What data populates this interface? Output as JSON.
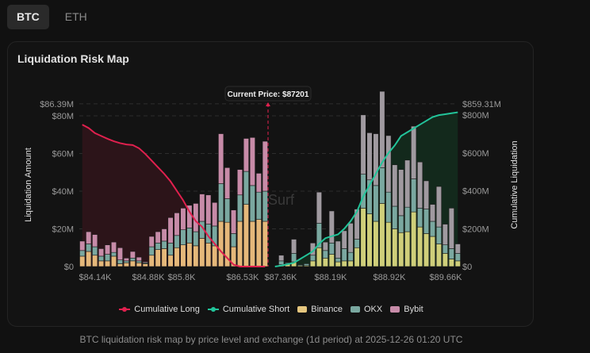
{
  "tabs": [
    {
      "label": "BTC",
      "active": true
    },
    {
      "label": "ETH",
      "active": false
    }
  ],
  "card": {
    "title": "Liquidation Risk Map"
  },
  "caption": "BTC liquidation risk map by price level and exchange (1d period) at 2025-12-26 01:20 UTC",
  "colors": {
    "binance": "#e5b87a",
    "binance_short": "#cfcf7a",
    "okx": "#7aa8a0",
    "bybit": "#c78ba8",
    "bybit_short": "#a09aa0",
    "long_line": "#e0204e",
    "short_line": "#22c49a",
    "long_fill": "#2c1419",
    "short_fill": "#13291c"
  },
  "chart_data": {
    "type": "bar",
    "title": "Liquidation Risk Map",
    "xlabel": "",
    "ylabel": "Liquidation Amount",
    "y2label": "Cumulative Liquidation",
    "ylim": [
      0,
      86.39
    ],
    "y2lim": [
      0,
      859.31
    ],
    "y_ticks": [
      "$0",
      "$20M",
      "$40M",
      "$60M",
      "$80M",
      "$86.39M"
    ],
    "y_tick_values": [
      0,
      20,
      40,
      60,
      80,
      86.39
    ],
    "y2_ticks": [
      "$0",
      "$200M",
      "$400M",
      "$600M",
      "$800M",
      "$859.31M"
    ],
    "y2_tick_values": [
      0,
      200,
      400,
      600,
      800,
      859.31
    ],
    "x_ticks": [
      "$84.14K",
      "$84.88K",
      "$85.8K",
      "$86.53K",
      "$87.36K",
      "$88.19K",
      "$88.92K",
      "$89.66K"
    ],
    "current_price_label": "Current Price: $87201",
    "current_price": 87201,
    "watermark": "Surf",
    "grid": true,
    "legend_position": "bottom",
    "legend": [
      "Cumulative Long",
      "Cumulative Short",
      "Binance",
      "OKX",
      "Bybit"
    ],
    "long_bars": {
      "binance": [
        5.5,
        8,
        6,
        3,
        3,
        5.5,
        1.5,
        2,
        3,
        2,
        1.5,
        6,
        9,
        9.5,
        6,
        10,
        11.5,
        12.5,
        11,
        15,
        12.5,
        11,
        24,
        23.5,
        10.5,
        24,
        33,
        24,
        25,
        24
      ],
      "okx": [
        3,
        4,
        4.5,
        2.5,
        3.5,
        2,
        2,
        1,
        1.5,
        1,
        0.5,
        4.5,
        3.5,
        4,
        6.5,
        6.5,
        8,
        8,
        7.5,
        9,
        10,
        10.5,
        20,
        12.5,
        7,
        14,
        17.5,
        19,
        14.5,
        16
      ],
      "bybit": [
        5,
        6.5,
        6.5,
        4,
        5,
        5.5,
        6.5,
        1.5,
        3.5,
        2,
        0.5,
        5.5,
        6,
        6.5,
        13.5,
        12,
        11.5,
        12,
        15,
        14.5,
        15.5,
        12.5,
        26.5,
        16.5,
        12.5,
        13.5,
        17.5,
        25.5,
        10,
        26.5
      ],
      "cumulative": [
        750,
        732,
        705,
        690,
        675,
        662,
        652,
        645,
        642,
        625,
        595,
        560,
        525,
        490,
        450,
        400,
        350,
        290,
        240,
        210,
        160,
        120,
        80,
        45,
        10,
        0,
        0,
        0,
        0,
        0
      ]
    },
    "short_bars": {
      "binance": [
        0,
        1,
        1.5,
        2.5,
        0.5,
        0.5,
        3,
        10,
        4.5,
        6.5,
        2.5,
        3,
        3,
        10,
        31,
        28,
        24,
        33.5,
        23.5,
        20,
        18,
        18.5,
        29,
        21,
        17.5,
        16,
        12,
        7,
        4,
        3
      ],
      "okx": [
        0,
        2,
        0.5,
        4.5,
        0.5,
        1,
        3,
        13,
        4,
        6,
        2,
        6.5,
        4.5,
        4.5,
        18,
        18,
        19,
        19,
        16,
        12,
        9,
        13,
        17.5,
        10,
        13,
        8,
        9,
        4.5,
        5.5,
        4
      ],
      "bybit": [
        0,
        3,
        0,
        7.5,
        0,
        0,
        6.5,
        16.5,
        4.5,
        17,
        9,
        9.5,
        15.5,
        16,
        31.5,
        25,
        27.5,
        40.5,
        30,
        22,
        24.5,
        25,
        28,
        24.5,
        15,
        9,
        21.5,
        11,
        21.5,
        5
      ],
      "cumulative": [
        0,
        5,
        12,
        20,
        40,
        60,
        80,
        120,
        150,
        160,
        170,
        200,
        240,
        290,
        370,
        430,
        490,
        550,
        600,
        640,
        690,
        710,
        730,
        750,
        770,
        790,
        800,
        805,
        810,
        815
      ]
    }
  }
}
